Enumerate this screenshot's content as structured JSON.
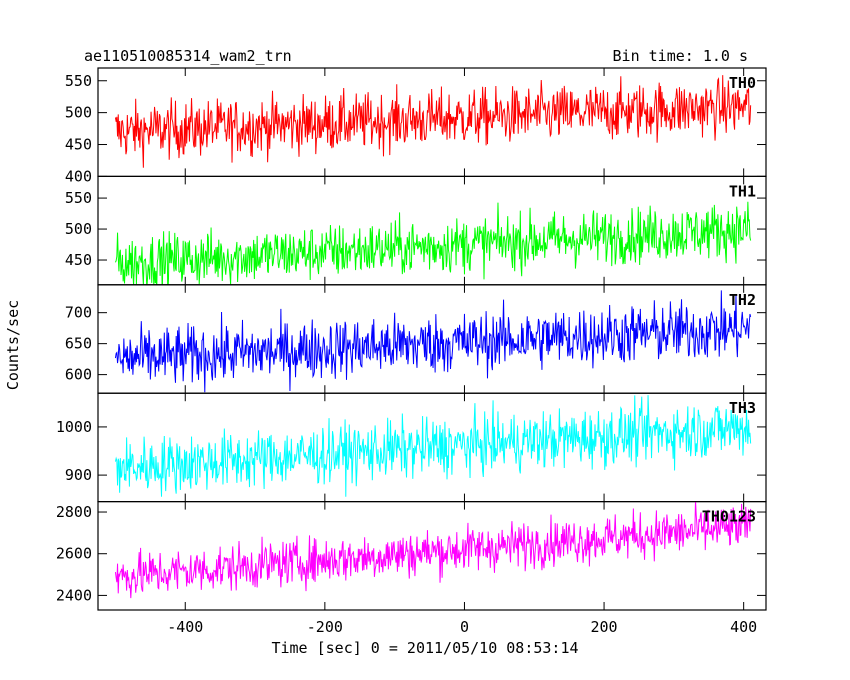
{
  "header": {
    "title": "ae110510085314_wam2_trn",
    "bin_time": "Bin time: 1.0 s"
  },
  "chart_data": {
    "type": "line",
    "xlabel": "Time [sec] 0 = 2011/05/10 08:53:14",
    "ylabel": "Counts/sec",
    "xlim": [
      -525,
      432
    ],
    "x_ticks": [
      -400,
      -200,
      0,
      200,
      400
    ],
    "x_range": [
      -500,
      410
    ],
    "bin_size": 1.0,
    "grid": false,
    "panels": [
      {
        "name": "TH0",
        "color": "#ff0000",
        "ylim": [
          400,
          570
        ],
        "y_ticks": [
          400,
          450,
          500,
          550
        ],
        "trend_start": 470,
        "trend_end": 510,
        "noise": 22
      },
      {
        "name": "TH1",
        "color": "#00ff00",
        "ylim": [
          410,
          585
        ],
        "y_ticks": [
          450,
          500,
          550
        ],
        "trend_start": 445,
        "trend_end": 500,
        "noise": 22
      },
      {
        "name": "TH2",
        "color": "#0000ff",
        "ylim": [
          570,
          745
        ],
        "y_ticks": [
          600,
          650,
          700
        ],
        "trend_start": 625,
        "trend_end": 675,
        "noise": 24
      },
      {
        "name": "TH3",
        "color": "#00ffff",
        "ylim": [
          845,
          1070
        ],
        "y_ticks": [
          900,
          1000
        ],
        "trend_start": 915,
        "trend_end": 1000,
        "noise": 30
      },
      {
        "name": "TH0123",
        "color": "#ff00ff",
        "ylim": [
          2330,
          2850
        ],
        "y_ticks": [
          2400,
          2600,
          2800
        ],
        "trend_start": 2490,
        "trend_end": 2730,
        "noise": 55
      }
    ]
  }
}
